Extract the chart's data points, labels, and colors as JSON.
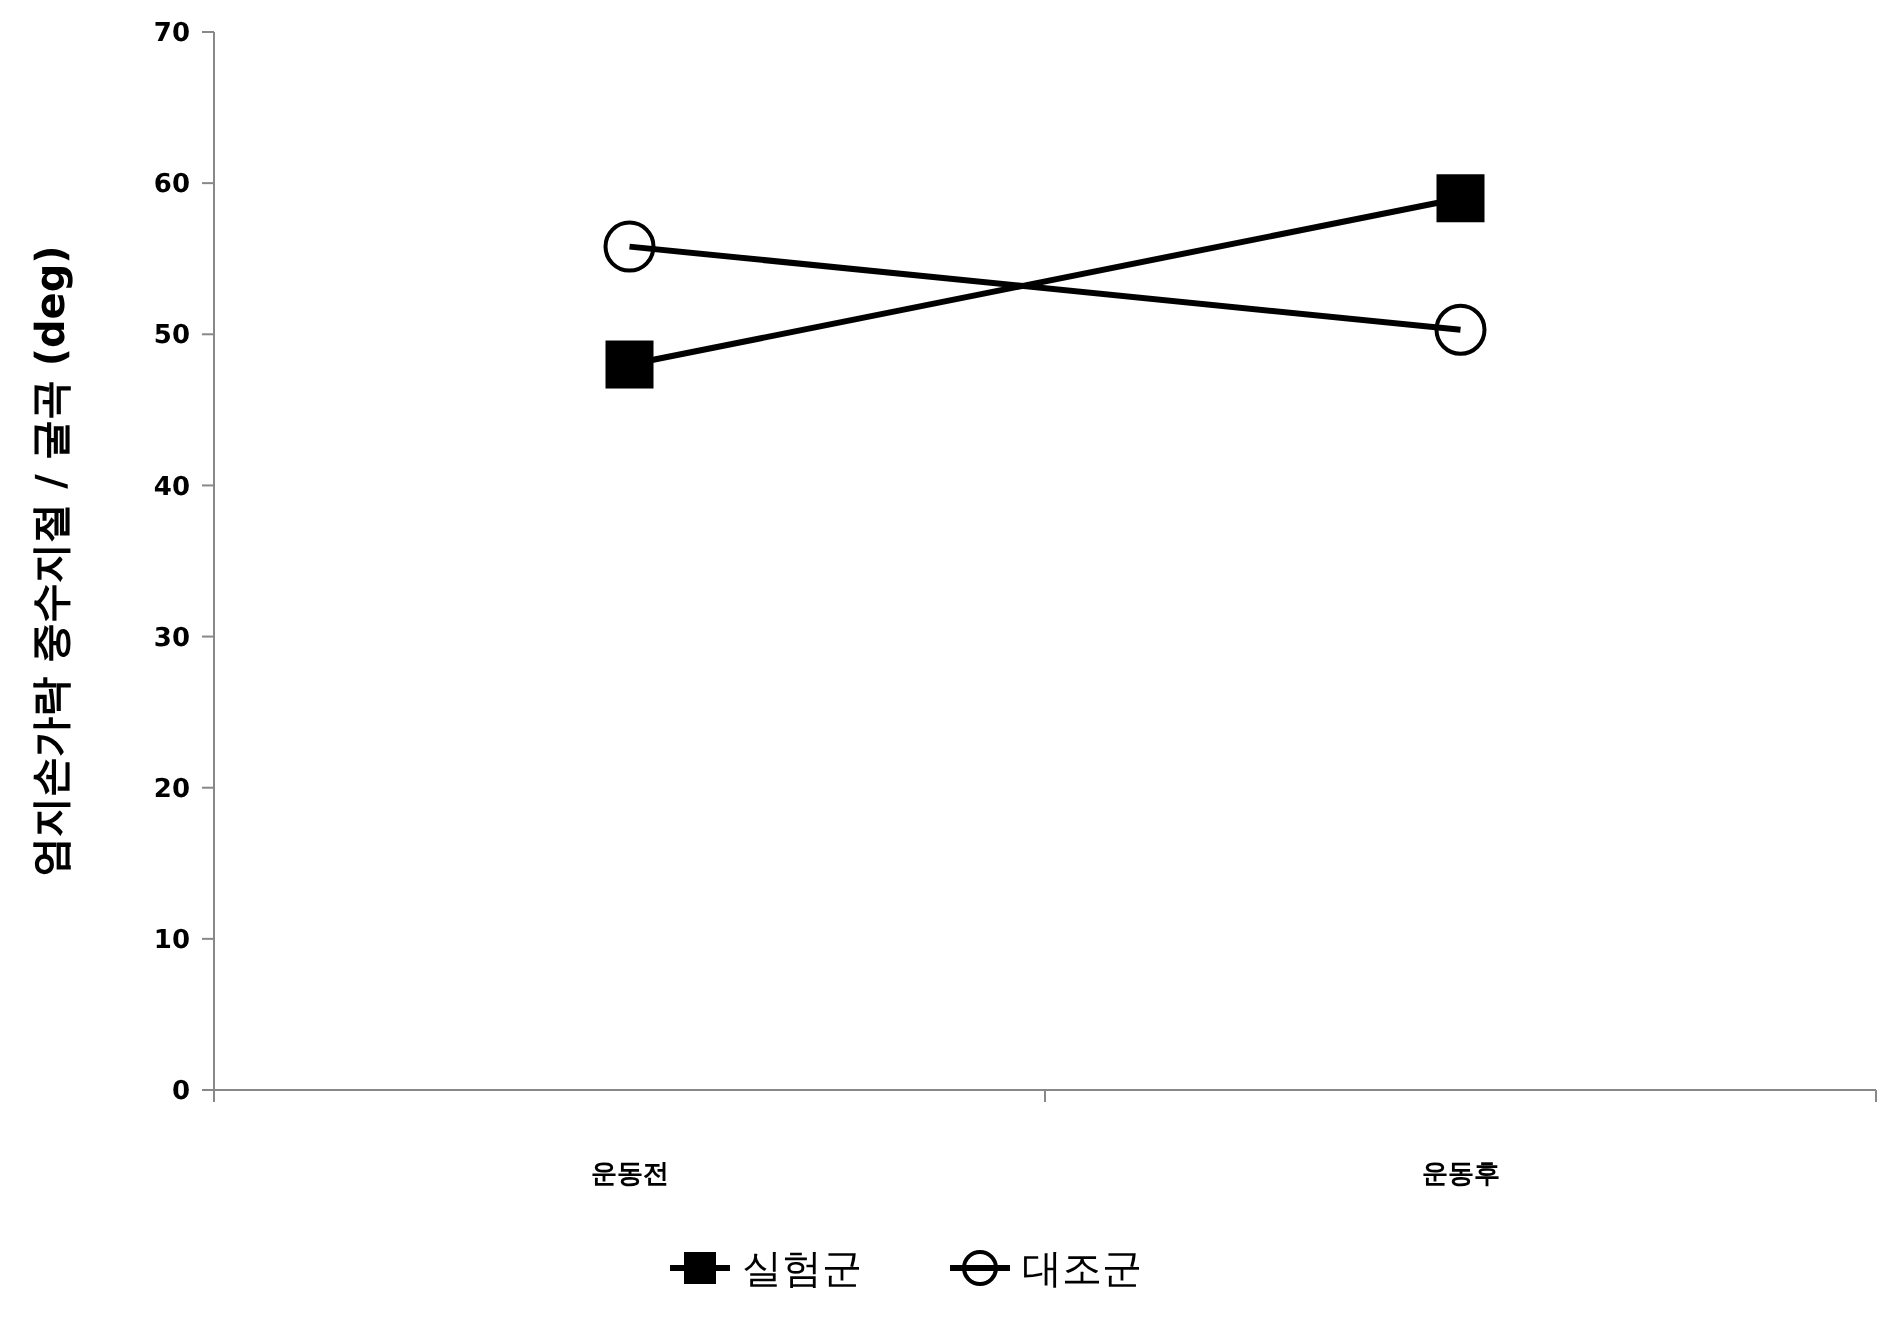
{
  "chart_data": {
    "type": "line",
    "ylabel": "엄지손가락 중수지절 / 굴곡 (deg)",
    "categories": [
      "운동전",
      "운동후"
    ],
    "series": [
      {
        "name": "실험군",
        "color": "#000000",
        "values": [
          48,
          59
        ],
        "marker": "square"
      },
      {
        "name": "대조군",
        "color": "#000000",
        "values": [
          55.8,
          50.3
        ],
        "marker": "circle"
      }
    ],
    "ylim": [
      0,
      70
    ],
    "yticks": [
      0,
      10,
      20,
      30,
      40,
      50,
      60,
      70
    ],
    "grid": false,
    "legend": "bottom",
    "line_style": "solid"
  }
}
